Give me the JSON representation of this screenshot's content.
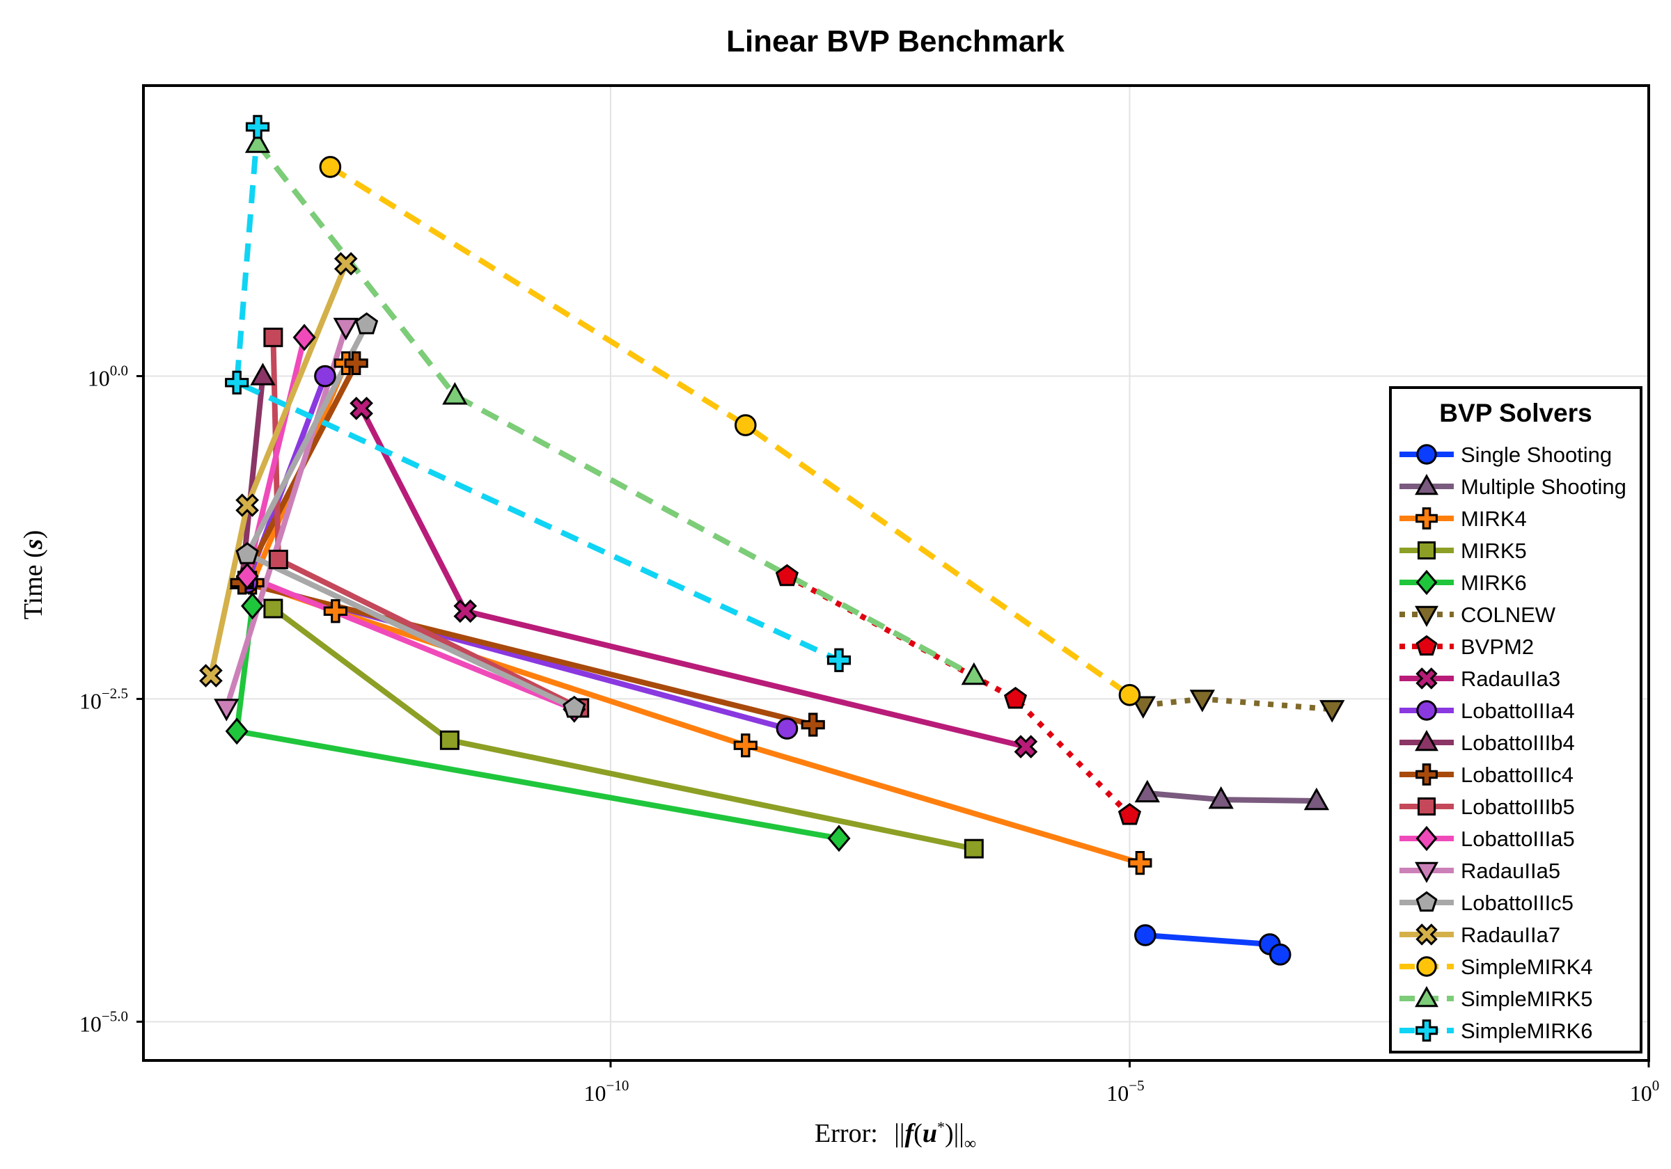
{
  "chart_data": {
    "type": "line",
    "title": "Linear BVP Benchmark",
    "xlabel": "Error: ||f(u*)||∞",
    "ylabel": "Time (s)",
    "xscale": "log10",
    "yscale": "log10",
    "xlim_log10": [
      -14.5,
      0
    ],
    "ylim_log10": [
      -5.3,
      2.25
    ],
    "xticks": [
      {
        "base": "10",
        "exp": "−10",
        "log": -10
      },
      {
        "base": "10",
        "exp": "−5",
        "log": -5
      },
      {
        "base": "10",
        "exp": "0",
        "log": 0
      }
    ],
    "yticks": [
      {
        "base": "10",
        "exp": "0.0",
        "log": 0
      },
      {
        "base": "10",
        "exp": "−2.5",
        "log": -2.5
      },
      {
        "base": "10",
        "exp": "−5.0",
        "log": -5
      }
    ],
    "grid": true,
    "legend": {
      "title": "BVP Solvers",
      "position": "right"
    },
    "series": [
      {
        "name": "Single Shooting",
        "color": "#0b3dff",
        "marker": "circle",
        "dash": "solid",
        "points": [
          [
            -4.85,
            -4.33
          ],
          [
            -3.65,
            -4.4
          ],
          [
            -3.55,
            -4.48
          ]
        ]
      },
      {
        "name": "Multiple Shooting",
        "color": "#7a5a7e",
        "marker": "triangle",
        "dash": "solid",
        "points": [
          [
            -4.83,
            -3.23
          ],
          [
            -4.12,
            -3.28
          ],
          [
            -3.2,
            -3.29
          ]
        ]
      },
      {
        "name": "MIRK4",
        "color": "#ff7f0e",
        "marker": "cross",
        "dash": "solid",
        "points": [
          [
            -12.55,
            0.1
          ],
          [
            -13.45,
            -1.6
          ],
          [
            -12.65,
            -1.82
          ],
          [
            -8.7,
            -2.86
          ],
          [
            -4.9,
            -3.77
          ]
        ]
      },
      {
        "name": "MIRK5",
        "color": "#8d9f24",
        "marker": "square",
        "dash": "solid",
        "points": [
          [
            -13.25,
            -1.8
          ],
          [
            -11.55,
            -2.82
          ],
          [
            -6.5,
            -3.66
          ]
        ]
      },
      {
        "name": "MIRK6",
        "color": "#1fc63c",
        "marker": "diamond",
        "dash": "solid",
        "points": [
          [
            -13.45,
            -1.78
          ],
          [
            -13.6,
            -2.75
          ],
          [
            -7.8,
            -3.58
          ]
        ]
      },
      {
        "name": "COLNEW",
        "color": "#806a2a",
        "marker": "triangle-down",
        "dash": "dot",
        "points": [
          [
            -4.87,
            -2.55
          ],
          [
            -4.3,
            -2.5
          ],
          [
            -3.05,
            -2.58
          ]
        ]
      },
      {
        "name": "BVPM2",
        "color": "#e00010",
        "marker": "pentagon",
        "dash": "dot",
        "points": [
          [
            -8.3,
            -1.55
          ],
          [
            -6.1,
            -2.5
          ],
          [
            -5.0,
            -3.4
          ]
        ]
      },
      {
        "name": "RadauIIa3",
        "color": "#b81c78",
        "marker": "x",
        "dash": "solid",
        "points": [
          [
            -12.4,
            -0.25
          ],
          [
            -11.4,
            -1.82
          ],
          [
            -6.0,
            -2.87
          ]
        ]
      },
      {
        "name": "LobattoIIIa4",
        "color": "#8a38e0",
        "marker": "circle",
        "dash": "solid",
        "points": [
          [
            -12.75,
            0.0
          ],
          [
            -13.5,
            -1.6
          ],
          [
            -8.3,
            -2.73
          ]
        ]
      },
      {
        "name": "LobattoIIIb4",
        "color": "#8a3566",
        "marker": "triangle",
        "dash": "solid",
        "points": [
          [
            -13.35,
            0.0
          ],
          [
            -13.55,
            -1.58
          ]
        ]
      },
      {
        "name": "LobattoIIIc4",
        "color": "#a84a0c",
        "marker": "cross",
        "dash": "solid",
        "points": [
          [
            -12.45,
            0.1
          ],
          [
            -13.55,
            -1.6
          ],
          [
            -8.05,
            -2.7
          ]
        ]
      },
      {
        "name": "LobattoIIIb5",
        "color": "#c4485a",
        "marker": "square",
        "dash": "solid",
        "points": [
          [
            -13.25,
            0.3
          ],
          [
            -13.2,
            -1.42
          ],
          [
            -10.3,
            -2.57
          ]
        ]
      },
      {
        "name": "LobattoIIIa5",
        "color": "#f04aba",
        "marker": "diamond",
        "dash": "solid",
        "points": [
          [
            -12.95,
            0.3
          ],
          [
            -13.5,
            -1.55
          ],
          [
            -10.35,
            -2.58
          ]
        ]
      },
      {
        "name": "RadauIIa5",
        "color": "#cc80b8",
        "marker": "triangle-down",
        "dash": "solid",
        "points": [
          [
            -12.55,
            0.38
          ],
          [
            -13.7,
            -2.57
          ]
        ]
      },
      {
        "name": "LobattoIIIc5",
        "color": "#a8a8a8",
        "marker": "pentagon",
        "dash": "solid",
        "points": [
          [
            -12.35,
            0.4
          ],
          [
            -13.5,
            -1.38
          ],
          [
            -10.35,
            -2.57
          ]
        ]
      },
      {
        "name": "RadauIIa7",
        "color": "#d4b04a",
        "marker": "x",
        "dash": "solid",
        "points": [
          [
            -12.55,
            0.87
          ],
          [
            -13.5,
            -1.0
          ],
          [
            -13.85,
            -2.32
          ]
        ]
      },
      {
        "name": "SimpleMIRK4",
        "color": "#ffc40a",
        "marker": "circle",
        "dash": "dash",
        "points": [
          [
            -12.7,
            1.62
          ],
          [
            -8.7,
            -0.38
          ],
          [
            -5.0,
            -2.47
          ]
        ]
      },
      {
        "name": "SimpleMIRK5",
        "color": "#7ccc78",
        "marker": "triangle",
        "dash": "dash",
        "points": [
          [
            -13.4,
            1.8
          ],
          [
            -11.5,
            -0.15
          ],
          [
            -6.5,
            -2.32
          ]
        ]
      },
      {
        "name": "SimpleMIRK6",
        "color": "#10d4f4",
        "marker": "cross",
        "dash": "dash",
        "points": [
          [
            -13.4,
            1.93
          ],
          [
            -13.6,
            -0.05
          ],
          [
            -7.8,
            -2.2
          ]
        ]
      }
    ]
  }
}
